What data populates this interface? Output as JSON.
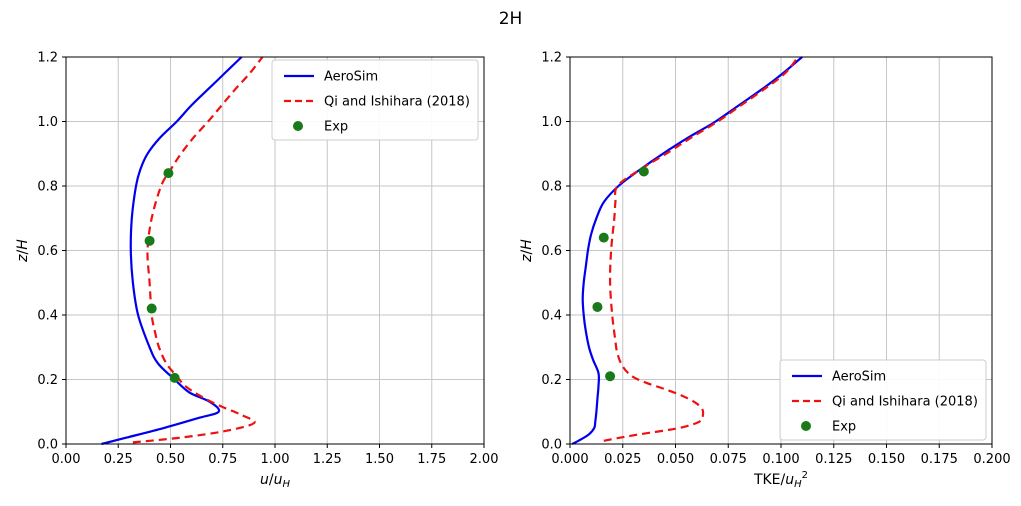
{
  "title": "2H",
  "colors": {
    "aerosim": "#0000ee",
    "qi": "#ee1111",
    "exp": "#1a7a1a",
    "grid": "#c6c6c6",
    "axis": "#000000",
    "legend_border": "#cccccc",
    "legend_bg": "#ffffff",
    "text": "#000000"
  },
  "legend_labels": [
    "AeroSim",
    "Qi and Ishihara (2018)",
    "Exp"
  ],
  "chart_data": [
    {
      "id": "velocity-profile",
      "type": "line",
      "title": "2H",
      "xlabel": "u/u_H",
      "ylabel": "z/H",
      "xlim": [
        0.0,
        2.0
      ],
      "ylim": [
        0.0,
        1.2
      ],
      "grid": true,
      "legend_position": "upper right",
      "xticks": {
        "values": [
          0.0,
          0.25,
          0.5,
          0.75,
          1.0,
          1.25,
          1.5,
          1.75,
          2.0
        ],
        "labels": [
          "0.00",
          "0.25",
          "0.50",
          "0.75",
          "1.00",
          "1.25",
          "1.50",
          "1.75",
          "2.00"
        ]
      },
      "yticks": {
        "values": [
          0.0,
          0.2,
          0.4,
          0.6,
          0.8,
          1.0,
          1.2
        ],
        "labels": [
          "0.0",
          "0.2",
          "0.4",
          "0.6",
          "0.8",
          "1.0",
          "1.2"
        ]
      },
      "series": [
        {
          "name": "AeroSim",
          "style": "solid",
          "color_key": "aerosim",
          "x": [
            0.17,
            0.29,
            0.47,
            0.63,
            0.73,
            0.69,
            0.59,
            0.52,
            0.44,
            0.4,
            0.345,
            0.32,
            0.31,
            0.315,
            0.335,
            0.355,
            0.39,
            0.45,
            0.53,
            0.6,
            0.68,
            0.76,
            0.84
          ],
          "y": [
            0.0,
            0.02,
            0.05,
            0.08,
            0.1,
            0.13,
            0.16,
            0.2,
            0.25,
            0.3,
            0.4,
            0.5,
            0.6,
            0.7,
            0.8,
            0.85,
            0.9,
            0.95,
            1.0,
            1.05,
            1.1,
            1.15,
            1.2
          ]
        },
        {
          "name": "Qi and Ishihara (2018)",
          "style": "dashed",
          "color_key": "qi",
          "x": [
            0.32,
            0.55,
            0.76,
            0.9,
            0.84,
            0.73,
            0.64,
            0.57,
            0.53,
            0.48,
            0.445,
            0.425,
            0.41,
            0.4,
            0.39,
            0.41,
            0.455,
            0.5,
            0.55,
            0.61,
            0.68,
            0.745,
            0.81,
            0.88,
            0.94
          ],
          "y": [
            0.005,
            0.02,
            0.04,
            0.065,
            0.09,
            0.12,
            0.15,
            0.18,
            0.21,
            0.25,
            0.3,
            0.35,
            0.4,
            0.5,
            0.6,
            0.7,
            0.8,
            0.85,
            0.9,
            0.95,
            1.0,
            1.05,
            1.1,
            1.15,
            1.2
          ]
        },
        {
          "name": "Exp",
          "style": "points",
          "color_key": "exp",
          "x": [
            0.49,
            0.4,
            0.41,
            0.52
          ],
          "y": [
            0.84,
            0.63,
            0.42,
            0.205
          ]
        }
      ]
    },
    {
      "id": "tke-profile",
      "type": "line",
      "title": "2H",
      "xlabel": "TKE/u_H^2",
      "ylabel": "z/H",
      "xlim": [
        0.0,
        0.2
      ],
      "ylim": [
        0.0,
        1.2
      ],
      "grid": true,
      "legend_position": "lower right",
      "xticks": {
        "values": [
          0.0,
          0.025,
          0.05,
          0.075,
          0.1,
          0.125,
          0.15,
          0.175,
          0.2
        ],
        "labels": [
          "0.000",
          "0.025",
          "0.050",
          "0.075",
          "0.100",
          "0.125",
          "0.150",
          "0.175",
          "0.200"
        ]
      },
      "yticks": {
        "values": [
          0.0,
          0.2,
          0.4,
          0.6,
          0.8,
          1.0,
          1.2
        ],
        "labels": [
          "0.0",
          "0.2",
          "0.4",
          "0.6",
          "0.8",
          "1.0",
          "1.2"
        ]
      },
      "series": [
        {
          "name": "AeroSim",
          "style": "solid",
          "color_key": "aerosim",
          "x": [
            0.001,
            0.004,
            0.009,
            0.0115,
            0.012,
            0.0125,
            0.013,
            0.0135,
            0.0135,
            0.011,
            0.009,
            0.0075,
            0.0065,
            0.006,
            0.0065,
            0.0075,
            0.0085,
            0.01,
            0.0125,
            0.016,
            0.023,
            0.033,
            0.044,
            0.056,
            0.069,
            0.08,
            0.091,
            0.101,
            0.11
          ],
          "y": [
            0.0,
            0.01,
            0.03,
            0.05,
            0.07,
            0.1,
            0.14,
            0.18,
            0.22,
            0.26,
            0.3,
            0.35,
            0.4,
            0.45,
            0.5,
            0.55,
            0.6,
            0.65,
            0.7,
            0.75,
            0.8,
            0.85,
            0.9,
            0.95,
            1.0,
            1.05,
            1.1,
            1.15,
            1.2
          ]
        },
        {
          "name": "Qi and Ishihara (2018)",
          "style": "dashed",
          "color_key": "qi",
          "x": [
            0.016,
            0.024,
            0.033,
            0.052,
            0.0615,
            0.063,
            0.0625,
            0.059,
            0.053,
            0.045,
            0.036,
            0.0295,
            0.025,
            0.0225,
            0.0215,
            0.02,
            0.019,
            0.0195,
            0.021,
            0.0215,
            0.0225,
            0.033,
            0.0455,
            0.0575,
            0.07,
            0.081,
            0.092,
            0.102,
            0.108
          ],
          "y": [
            0.01,
            0.02,
            0.03,
            0.05,
            0.07,
            0.09,
            0.11,
            0.13,
            0.15,
            0.17,
            0.19,
            0.21,
            0.24,
            0.28,
            0.32,
            0.4,
            0.5,
            0.6,
            0.7,
            0.75,
            0.8,
            0.85,
            0.9,
            0.95,
            1.0,
            1.05,
            1.1,
            1.15,
            1.2
          ]
        },
        {
          "name": "Exp",
          "style": "points",
          "color_key": "exp",
          "x": [
            0.035,
            0.016,
            0.013,
            0.019
          ],
          "y": [
            0.845,
            0.64,
            0.425,
            0.21
          ]
        }
      ]
    }
  ]
}
